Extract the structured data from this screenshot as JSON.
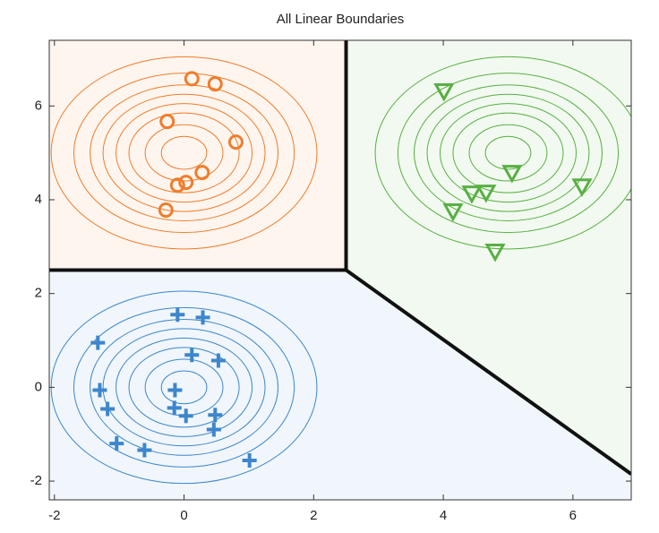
{
  "chart_data": {
    "type": "scatter",
    "title": "All Linear Boundaries",
    "xlim": [
      -2.08,
      6.9
    ],
    "ylim": [
      -2.4,
      7.4
    ],
    "xticks": [
      -2,
      0,
      2,
      4,
      6
    ],
    "yticks": [
      -2,
      0,
      2,
      4,
      6
    ],
    "series": [
      {
        "color": "#f07d2c",
        "marker": "circle",
        "x": [
          0.12,
          0.48,
          -0.26,
          0.8,
          0.28,
          0.03,
          -0.1,
          -0.28
        ],
        "y": [
          6.58,
          6.47,
          5.67,
          5.23,
          4.58,
          4.37,
          4.31,
          3.78
        ],
        "contour_center": [
          0,
          5
        ],
        "contour_radii": [
          0.35,
          0.6,
          0.85,
          1.05,
          1.25,
          1.45,
          1.7,
          2.05
        ]
      },
      {
        "color": "#58b043",
        "marker": "triangle",
        "x": [
          4.01,
          5.06,
          6.14,
          4.66,
          4.44,
          4.15,
          4.8
        ],
        "y": [
          6.32,
          4.58,
          4.29,
          4.16,
          4.14,
          3.76,
          2.9
        ],
        "contour_center": [
          5,
          5
        ],
        "contour_radii": [
          0.35,
          0.6,
          0.85,
          1.05,
          1.25,
          1.45,
          1.7,
          2.05
        ]
      },
      {
        "color": "#3d86cc",
        "marker": "plus",
        "x": [
          -0.1,
          0.29,
          -1.33,
          0.12,
          0.53,
          -1.3,
          -0.14,
          -0.15,
          0.03,
          -1.18,
          0.48,
          0.46,
          -1.04,
          -0.61,
          1.01
        ],
        "y": [
          1.55,
          1.49,
          0.95,
          0.69,
          0.57,
          -0.06,
          -0.06,
          -0.44,
          -0.61,
          -0.46,
          -0.59,
          -0.9,
          -1.2,
          -1.34,
          -1.56
        ],
        "contour_center": [
          0,
          0
        ],
        "contour_radii": [
          0.35,
          0.6,
          0.85,
          1.05,
          1.25,
          1.45,
          1.7,
          2.05
        ]
      }
    ],
    "boundaries": [
      {
        "x": [
          2.5,
          2.5
        ],
        "y": [
          7.4,
          2.5
        ]
      },
      {
        "x": [
          -2.08,
          2.5
        ],
        "y": [
          2.5,
          2.5
        ]
      },
      {
        "x": [
          2.5,
          6.9
        ],
        "y": [
          2.5,
          -1.85
        ]
      }
    ]
  }
}
